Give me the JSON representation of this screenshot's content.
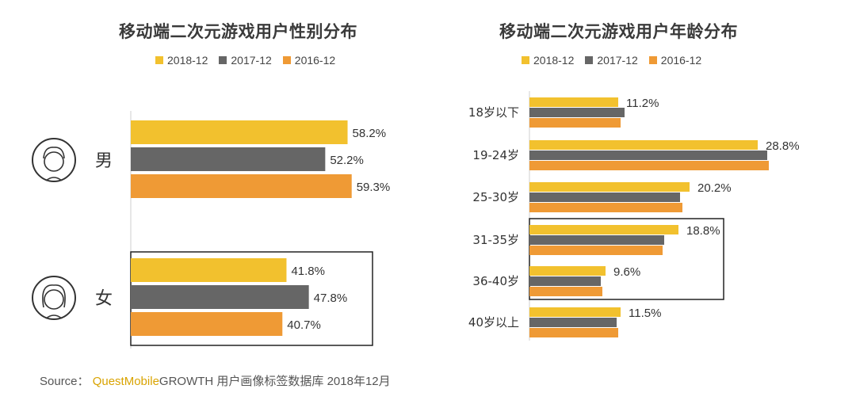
{
  "colors": {
    "s2018": "#f2c12e",
    "s2017": "#666666",
    "s2016": "#ef9a35"
  },
  "chart_data": [
    {
      "type": "bar",
      "orientation": "horizontal",
      "title": "移动端二次元游戏用户性别分布",
      "categories": [
        "男",
        "女"
      ],
      "series": [
        {
          "name": "2018-12",
          "values": [
            58.2,
            41.8
          ]
        },
        {
          "name": "2017-12",
          "values": [
            52.2,
            47.8
          ]
        },
        {
          "name": "2016-12",
          "values": [
            59.3,
            40.7
          ]
        }
      ],
      "data_labels": [
        [
          "58.2%",
          "41.8%"
        ],
        [
          "52.2%",
          "47.8%"
        ],
        [
          "59.3%",
          "40.7%"
        ]
      ],
      "icons": [
        "male-user-icon",
        "female-user-icon"
      ],
      "highlighted_category": "女",
      "legend": "top"
    },
    {
      "type": "bar",
      "orientation": "horizontal",
      "title": "移动端二次元游戏用户年龄分布",
      "categories": [
        "18岁以下",
        "19-24岁",
        "25-30岁",
        "31-35岁",
        "36-40岁",
        "40岁以上"
      ],
      "series": [
        {
          "name": "2018-12",
          "values": [
            11.2,
            28.8,
            20.2,
            18.8,
            9.6,
            11.5
          ]
        },
        {
          "name": "2017-12",
          "values": [
            12.0,
            30.0,
            19.0,
            17.0,
            9.0,
            11.0
          ]
        },
        {
          "name": "2016-12",
          "values": [
            11.5,
            30.2,
            19.3,
            16.8,
            9.2,
            11.2
          ]
        }
      ],
      "data_labels": [
        "11.2%",
        "28.8%",
        "20.2%",
        "18.8%",
        "9.6%",
        "11.5%"
      ],
      "highlighted_categories": [
        "31-35岁",
        "36-40岁"
      ],
      "legend": "top"
    }
  ],
  "source": {
    "prefix": "Source：",
    "brand": "QuestMobile",
    "text": "GROWTH 用户画像标签数据库 2018年12月"
  }
}
